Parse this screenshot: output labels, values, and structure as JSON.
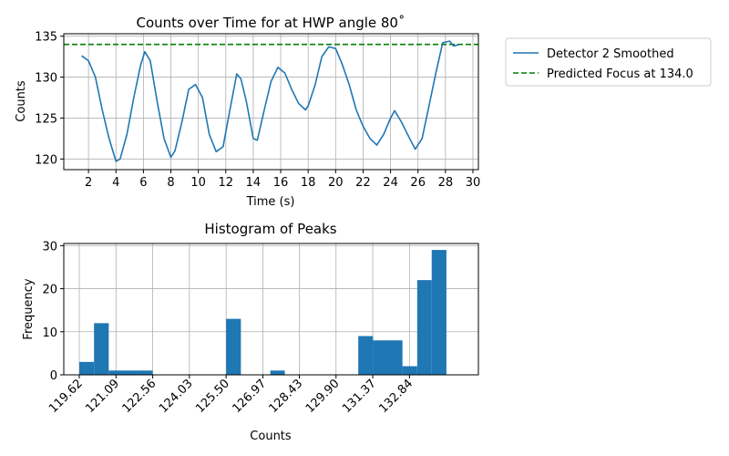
{
  "chart_data": [
    {
      "type": "line",
      "title": "Counts over Time for at HWP angle 80˚",
      "xlabel": "Time (s)",
      "ylabel": "Counts",
      "xlim": [
        0.2,
        30.4
      ],
      "ylim": [
        118.7,
        135.3
      ],
      "xticks": [
        2,
        4,
        6,
        8,
        10,
        12,
        14,
        16,
        18,
        20,
        22,
        24,
        26,
        28,
        30
      ],
      "yticks": [
        120,
        125,
        130,
        135
      ],
      "grid": true,
      "legend_position": "outside-right",
      "series": [
        {
          "name": "Detector 2 Smoothed",
          "color": "#1f77b4",
          "style": "solid",
          "x": [
            1.5,
            2.0,
            2.5,
            3.0,
            3.5,
            4.0,
            4.3,
            4.8,
            5.3,
            5.8,
            6.1,
            6.5,
            7.0,
            7.5,
            8.0,
            8.3,
            8.8,
            9.3,
            9.8,
            10.3,
            10.8,
            11.3,
            11.8,
            12.3,
            12.8,
            13.1,
            13.5,
            14.0,
            14.3,
            14.8,
            15.3,
            15.8,
            16.3,
            16.8,
            17.3,
            17.8,
            18.0,
            18.5,
            19.0,
            19.5,
            20.0,
            20.5,
            21.0,
            21.5,
            22.0,
            22.5,
            23.0,
            23.5,
            24.0,
            24.3,
            24.8,
            25.3,
            25.8,
            26.3,
            26.8,
            27.3,
            27.8,
            28.3,
            28.6,
            29.0
          ],
          "values": [
            132.6,
            132.0,
            130.0,
            126.0,
            122.5,
            119.7,
            120.0,
            123.0,
            127.5,
            131.5,
            133.1,
            132.0,
            127.0,
            122.5,
            120.2,
            121.0,
            124.5,
            128.5,
            129.1,
            127.5,
            123.0,
            120.9,
            121.5,
            126.0,
            130.4,
            129.8,
            127.0,
            122.5,
            122.3,
            126.0,
            129.5,
            131.2,
            130.5,
            128.5,
            126.8,
            126.0,
            126.5,
            129.0,
            132.5,
            133.7,
            133.5,
            131.5,
            129.0,
            126.0,
            124.0,
            122.5,
            121.7,
            123.0,
            125.0,
            125.9,
            124.5,
            122.8,
            121.2,
            122.5,
            126.5,
            130.5,
            134.2,
            134.4,
            133.8,
            134.0
          ]
        },
        {
          "name": "Predicted Focus at 134.0",
          "color": "#008000",
          "style": "dashed",
          "y": 134.0
        }
      ]
    },
    {
      "type": "bar",
      "title": "Histogram of Peaks",
      "xlabel": "Counts",
      "ylabel": "Frequency",
      "xlim": [
        119.0,
        135.6
      ],
      "ylim": [
        0,
        30.5
      ],
      "yticks": [
        0,
        10,
        20,
        30
      ],
      "xtick_labels": [
        "119.62",
        "121.09",
        "122.56",
        "124.03",
        "125.50",
        "126.97",
        "128.43",
        "129.90",
        "131.37",
        "132.84"
      ],
      "xtick_values": [
        119.62,
        121.09,
        122.56,
        124.03,
        125.5,
        126.97,
        128.43,
        129.9,
        131.37,
        132.84
      ],
      "grid": true,
      "color": "#1f77b4",
      "bin_edges": [
        119.62,
        120.21,
        120.8,
        121.39,
        121.97,
        122.56,
        123.15,
        123.74,
        124.33,
        124.91,
        125.5,
        126.09,
        126.68,
        127.27,
        127.85,
        128.44,
        129.03,
        129.62,
        130.21,
        130.79,
        131.38,
        131.97,
        132.56,
        133.15,
        133.73,
        134.32
      ],
      "values": [
        3,
        12,
        1,
        1,
        1,
        0,
        0,
        0,
        0,
        0,
        13,
        0,
        0,
        1,
        0,
        0,
        0,
        0,
        0,
        9,
        8,
        8,
        2,
        22,
        29
      ]
    }
  ]
}
